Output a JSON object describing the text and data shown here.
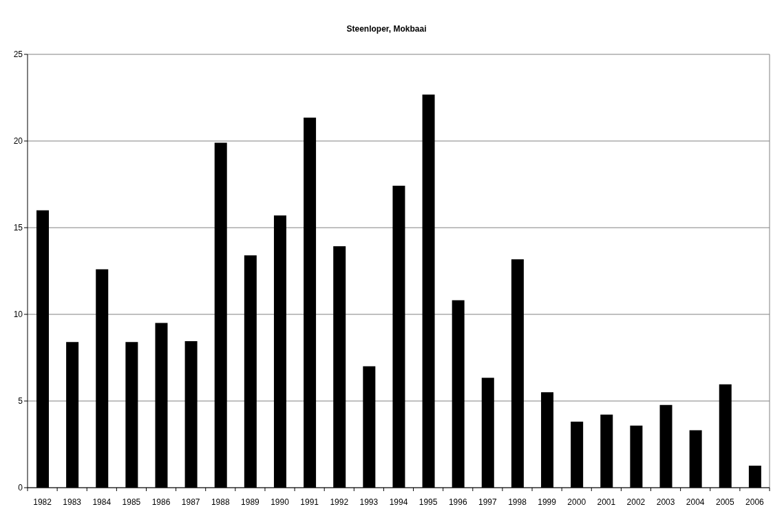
{
  "chart_data": {
    "type": "bar",
    "title": "Steenloper, Mokbaai",
    "categories": [
      "1982",
      "1983",
      "1984",
      "1985",
      "1986",
      "1987",
      "1988",
      "1989",
      "1990",
      "1991",
      "1992",
      "1993",
      "1994",
      "1995",
      "1996",
      "1997",
      "1998",
      "1999",
      "2000",
      "2001",
      "2002",
      "2003",
      "2004",
      "2005",
      "2006"
    ],
    "values": [
      16.0,
      8.4,
      12.6,
      8.4,
      9.5,
      8.45,
      19.9,
      13.4,
      15.7,
      21.35,
      13.93,
      7.0,
      17.42,
      22.68,
      10.81,
      6.34,
      13.17,
      5.51,
      3.81,
      4.22,
      3.58,
      4.77,
      3.31,
      5.96,
      1.27
    ],
    "color": "#000000",
    "ylim": [
      0,
      25
    ],
    "yticks": [
      0,
      5,
      10,
      15,
      20,
      25
    ],
    "grid": "y"
  }
}
